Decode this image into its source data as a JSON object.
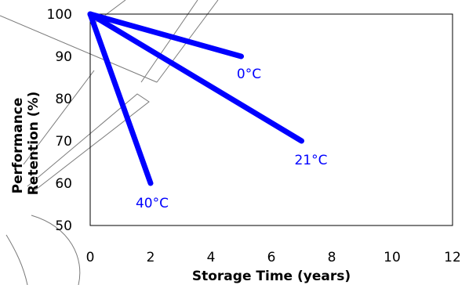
{
  "chart_data": {
    "type": "line",
    "xlabel": "Storage Time (years)",
    "ylabel": [
      "Performance",
      "Retention (%)"
    ],
    "xlim": [
      0,
      12
    ],
    "ylim": [
      50,
      100
    ],
    "xticks": [
      "0",
      "2",
      "4",
      "6",
      "8",
      "10",
      "12"
    ],
    "yticks": [
      "50",
      "60",
      "70",
      "80",
      "90",
      "100"
    ],
    "grid": false,
    "line_color": "#0000ff",
    "series": [
      {
        "name": "0°C",
        "x": [
          0,
          5
        ],
        "y": [
          100,
          90
        ]
      },
      {
        "name": "21°C",
        "x": [
          0,
          7
        ],
        "y": [
          100,
          70
        ]
      },
      {
        "name": "40°C",
        "x": [
          0,
          2
        ],
        "y": [
          100,
          60
        ]
      }
    ]
  }
}
